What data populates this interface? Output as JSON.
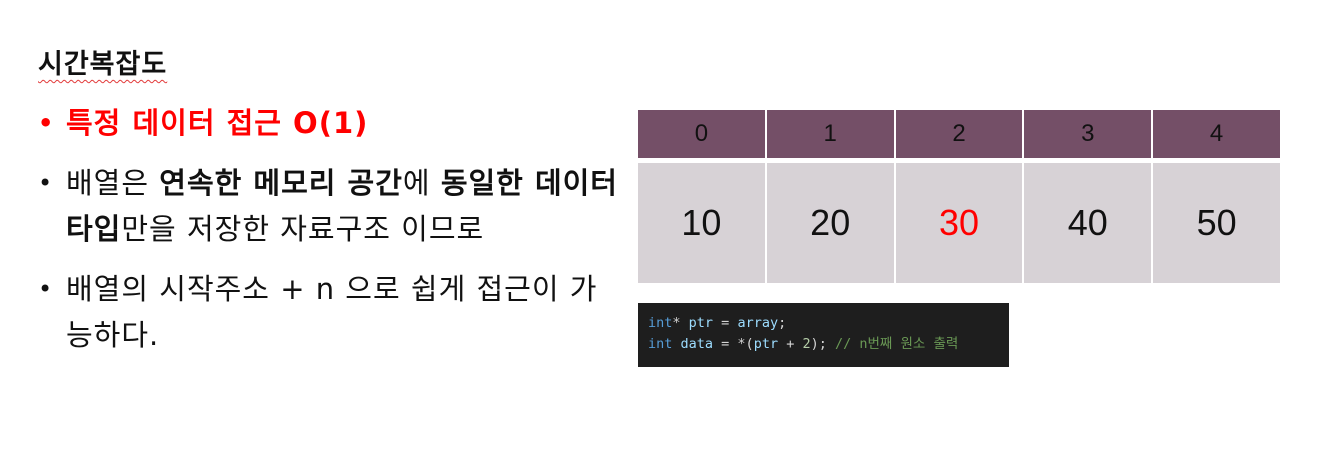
{
  "title": "시간복잡도",
  "bullets": {
    "b1": "특정 데이터 접근 O(1)",
    "b2": {
      "p1": "배열은 ",
      "p2": "연속한 메모리 공간",
      "p3": "에 ",
      "p4": "동일한 데이터 타입",
      "p5": "만을 저장한 자료구조 이므로"
    },
    "b3": "배열의 시작주소 + n 으로 쉽게 접근이 가능하다."
  },
  "array": {
    "indices": [
      "0",
      "1",
      "2",
      "3",
      "4"
    ],
    "values": [
      "10",
      "20",
      "30",
      "40",
      "50"
    ],
    "highlight_index": 2
  },
  "code": {
    "line1": {
      "t1": "int",
      "t2": "*",
      "t3": " ptr ",
      "t4": "=",
      "t5": " array",
      "t6": ";"
    },
    "line2": {
      "t1": "int",
      "t2": " data ",
      "t3": "= *(",
      "t4": "ptr",
      "t5": " + ",
      "t6": "2",
      "t7": "); ",
      "t8": "// n번째 원소 출력"
    }
  },
  "colors": {
    "accent_red": "#ff0000",
    "header_purple": "#744f67",
    "cell_gray": "#d7d2d6",
    "code_bg": "#1e1e1e"
  }
}
